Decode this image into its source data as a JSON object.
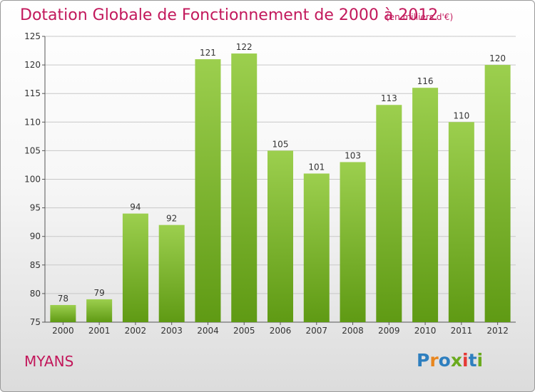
{
  "header": {
    "title": "Dotation Globale de Fonctionnement de 2000 à 2012",
    "subtitle": "(en milliers d'€)"
  },
  "footer": {
    "commune": "MYANS",
    "logo_text": "Proxiti",
    "logo_letters": [
      "P",
      "r",
      "o",
      "x",
      "i",
      "t",
      "i"
    ],
    "logo_colors": [
      "#2e7fbf",
      "#e8861e",
      "#2e7fbf",
      "#6aaa1e",
      "#e53935",
      "#2e7fbf",
      "#6aaa1e"
    ]
  },
  "colors": {
    "accent": "#c2185b",
    "bar_light": "#9ccf4e",
    "bar_dark": "#5f9a14",
    "grid": "#c8c8c8",
    "axis_text": "#333333"
  },
  "chart_data": {
    "type": "bar",
    "categories": [
      "2000",
      "2001",
      "2002",
      "2003",
      "2004",
      "2005",
      "2006",
      "2007",
      "2008",
      "2009",
      "2010",
      "2011",
      "2012"
    ],
    "values": [
      78,
      79,
      94,
      92,
      121,
      122,
      105,
      101,
      103,
      113,
      116,
      110,
      120
    ],
    "title": "Dotation Globale de Fonctionnement de 2000 à 2012",
    "subtitle": "(en milliers d'€)",
    "ylim": [
      75,
      125
    ],
    "yticks": [
      75,
      80,
      85,
      90,
      95,
      100,
      105,
      110,
      115,
      120,
      125
    ],
    "grid": true,
    "legend": "none"
  }
}
